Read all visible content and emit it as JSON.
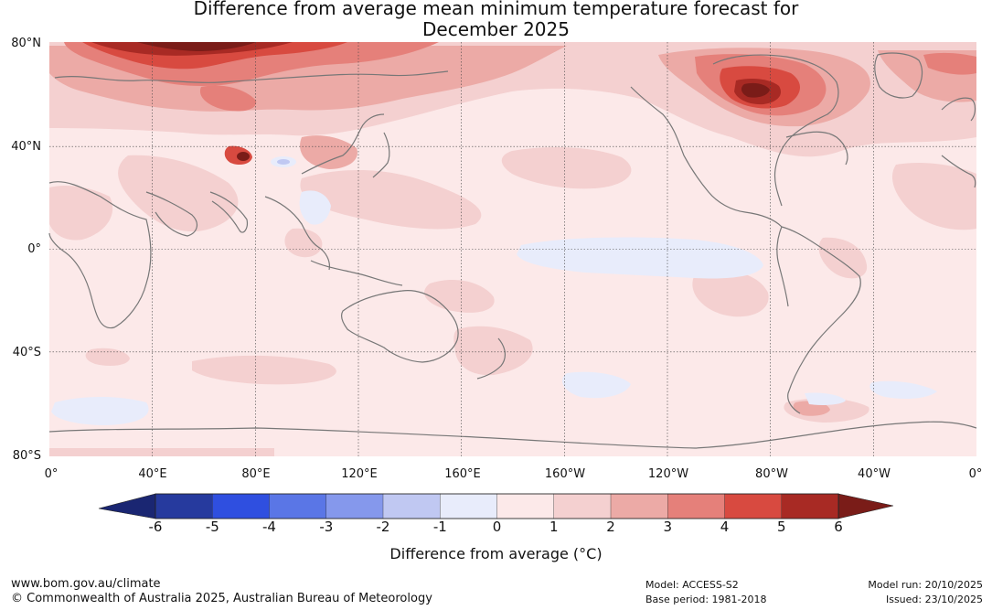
{
  "title_line1": "Difference from average mean minimum temperature forecast for",
  "title_line2": "December 2025",
  "map": {
    "lat_labels": [
      "80°N",
      "40°N",
      "0°",
      "40°S",
      "80°S"
    ],
    "lon_labels": [
      "0°",
      "40°E",
      "80°E",
      "120°E",
      "160°E",
      "160°W",
      "120°W",
      "80°W",
      "40°W",
      "0°"
    ]
  },
  "colorbar": {
    "ticks": [
      "-6",
      "-5",
      "-4",
      "-3",
      "-2",
      "-1",
      "0",
      "1",
      "2",
      "3",
      "4",
      "5",
      "6"
    ],
    "colors": [
      "#263a9e",
      "#2f4fe0",
      "#5a76e6",
      "#8598ec",
      "#c0c8f2",
      "#e8ecfb",
      "#fce9e9",
      "#f4d0d0",
      "#ecaaa6",
      "#e5807a",
      "#d84a40",
      "#a82a24"
    ],
    "under_color": "#1a2672",
    "over_color": "#7a1c18",
    "label": "Difference from average (°C)"
  },
  "footer": {
    "website": "www.bom.gov.au/climate",
    "copyright": "© Commonwealth of Australia 2025, Australian Bureau of Meteorology",
    "model": "Model: ACCESS-S2",
    "base_period": "Base period: 1981-2018",
    "model_run": "Model run: 20/10/2025",
    "issued": "Issued: 23/10/2025"
  }
}
